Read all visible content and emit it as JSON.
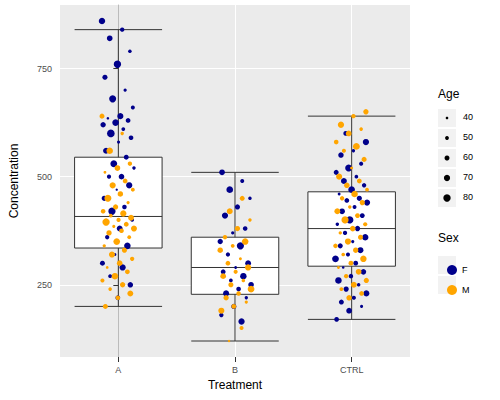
{
  "chart_data": {
    "type": "boxplot",
    "x_label": "Treatment",
    "y_label": "Concentration",
    "categories": [
      "A",
      "B",
      "CTRL"
    ],
    "ylim": [
      83,
      897
    ],
    "yticks": [
      250,
      500,
      750
    ],
    "grid": true,
    "boxes": [
      {
        "category": "A",
        "whisker_low": 200,
        "q1": 335,
        "median": 408,
        "q3": 545,
        "whisker_high": 840
      },
      {
        "category": "B",
        "whisker_low": 120,
        "q1": 228,
        "median": 290,
        "q3": 360,
        "whisker_high": 510
      },
      {
        "category": "CTRL",
        "whisker_low": 170,
        "q1": 293,
        "median": 380,
        "q3": 465,
        "whisker_high": 640
      }
    ],
    "size_legend": {
      "title": "Age",
      "values": [
        40,
        50,
        60,
        70,
        80
      ]
    },
    "color_legend_title": "Sex",
    "series": [
      {
        "name": "F",
        "color": "#00008B",
        "points": [
          [
            "A",
            860,
            72
          ],
          [
            "A",
            840,
            55
          ],
          [
            "A",
            820,
            66
          ],
          [
            "A",
            790,
            48
          ],
          [
            "A",
            760,
            80
          ],
          [
            "A",
            730,
            61
          ],
          [
            "A",
            700,
            45
          ],
          [
            "A",
            680,
            77
          ],
          [
            "A",
            660,
            52
          ],
          [
            "A",
            640,
            69
          ],
          [
            "A",
            635,
            40
          ],
          [
            "A",
            630,
            58
          ],
          [
            "A",
            625,
            74
          ],
          [
            "A",
            620,
            63
          ],
          [
            "A",
            610,
            50
          ],
          [
            "A",
            600,
            82
          ],
          [
            "A",
            590,
            57
          ],
          [
            "A",
            580,
            44
          ],
          [
            "A",
            560,
            68
          ],
          [
            "A",
            545,
            59
          ],
          [
            "A",
            530,
            75
          ],
          [
            "A",
            520,
            47
          ],
          [
            "A",
            500,
            65
          ],
          [
            "A",
            500,
            53
          ],
          [
            "A",
            480,
            71
          ],
          [
            "A",
            470,
            38
          ],
          [
            "A",
            450,
            62
          ],
          [
            "A",
            430,
            56
          ],
          [
            "A",
            420,
            79
          ],
          [
            "A",
            400,
            49
          ],
          [
            "A",
            380,
            67
          ],
          [
            "A",
            360,
            54
          ],
          [
            "A",
            340,
            73
          ],
          [
            "A",
            320,
            43
          ],
          [
            "A",
            300,
            60
          ],
          [
            "A",
            290,
            70
          ],
          [
            "A",
            270,
            51
          ],
          [
            "A",
            250,
            64
          ],
          [
            "A",
            220,
            58
          ],
          [
            "B",
            510,
            66
          ],
          [
            "B",
            490,
            52
          ],
          [
            "B",
            470,
            74
          ],
          [
            "B",
            450,
            48
          ],
          [
            "B",
            430,
            61
          ],
          [
            "B",
            410,
            70
          ],
          [
            "B",
            380,
            56
          ],
          [
            "B",
            370,
            45
          ],
          [
            "B",
            350,
            63
          ],
          [
            "B",
            340,
            78
          ],
          [
            "B",
            320,
            54
          ],
          [
            "B",
            300,
            67
          ],
          [
            "B",
            290,
            42
          ],
          [
            "B",
            280,
            59
          ],
          [
            "B",
            270,
            72
          ],
          [
            "B",
            260,
            50
          ],
          [
            "B",
            250,
            65
          ],
          [
            "B",
            240,
            57
          ],
          [
            "B",
            230,
            69
          ],
          [
            "B",
            220,
            46
          ],
          [
            "B",
            200,
            62
          ],
          [
            "B",
            180,
            55
          ],
          [
            "B",
            165,
            71
          ],
          [
            "CTRL",
            600,
            58
          ],
          [
            "CTRL",
            580,
            71
          ],
          [
            "CTRL",
            560,
            46
          ],
          [
            "CTRL",
            550,
            64
          ],
          [
            "CTRL",
            530,
            53
          ],
          [
            "CTRL",
            520,
            77
          ],
          [
            "CTRL",
            510,
            60
          ],
          [
            "CTRL",
            500,
            49
          ],
          [
            "CTRL",
            490,
            68
          ],
          [
            "CTRL",
            480,
            55
          ],
          [
            "CTRL",
            470,
            74
          ],
          [
            "CTRL",
            460,
            42
          ],
          [
            "CTRL",
            450,
            62
          ],
          [
            "CTRL",
            445,
            57
          ],
          [
            "CTRL",
            440,
            70
          ],
          [
            "CTRL",
            430,
            51
          ],
          [
            "CTRL",
            420,
            66
          ],
          [
            "CTRL",
            410,
            59
          ],
          [
            "CTRL",
            400,
            79
          ],
          [
            "CTRL",
            390,
            47
          ],
          [
            "CTRL",
            380,
            63
          ],
          [
            "CTRL",
            370,
            54
          ],
          [
            "CTRL",
            360,
            72
          ],
          [
            "CTRL",
            350,
            45
          ],
          [
            "CTRL",
            340,
            61
          ],
          [
            "CTRL",
            330,
            68
          ],
          [
            "CTRL",
            320,
            52
          ],
          [
            "CTRL",
            310,
            75
          ],
          [
            "CTRL",
            300,
            58
          ],
          [
            "CTRL",
            290,
            40
          ],
          [
            "CTRL",
            280,
            65
          ],
          [
            "CTRL",
            270,
            56
          ],
          [
            "CTRL",
            260,
            73
          ],
          [
            "CTRL",
            250,
            48
          ],
          [
            "CTRL",
            240,
            62
          ],
          [
            "CTRL",
            230,
            69
          ],
          [
            "CTRL",
            220,
            53
          ],
          [
            "CTRL",
            210,
            60
          ],
          [
            "CTRL",
            200,
            44
          ],
          [
            "CTRL",
            190,
            66
          ],
          [
            "CTRL",
            170,
            57
          ]
        ]
      },
      {
        "name": "M",
        "color": "#FFA500",
        "points": [
          [
            "A",
            640,
            60
          ],
          [
            "A",
            600,
            47
          ],
          [
            "A",
            560,
            73
          ],
          [
            "A",
            530,
            55
          ],
          [
            "A",
            520,
            66
          ],
          [
            "A",
            510,
            42
          ],
          [
            "A",
            490,
            58
          ],
          [
            "A",
            480,
            70
          ],
          [
            "A",
            470,
            51
          ],
          [
            "A",
            460,
            64
          ],
          [
            "A",
            450,
            77
          ],
          [
            "A",
            440,
            45
          ],
          [
            "A",
            430,
            62
          ],
          [
            "A",
            420,
            56
          ],
          [
            "A",
            415,
            71
          ],
          [
            "A",
            410,
            49
          ],
          [
            "A",
            405,
            67
          ],
          [
            "A",
            400,
            53
          ],
          [
            "A",
            395,
            80
          ],
          [
            "A",
            390,
            59
          ],
          [
            "A",
            385,
            44
          ],
          [
            "A",
            380,
            68
          ],
          [
            "A",
            375,
            57
          ],
          [
            "A",
            370,
            63
          ],
          [
            "A",
            360,
            50
          ],
          [
            "A",
            350,
            74
          ],
          [
            "A",
            340,
            46
          ],
          [
            "A",
            330,
            61
          ],
          [
            "A",
            320,
            69
          ],
          [
            "A",
            310,
            54
          ],
          [
            "A",
            300,
            65
          ],
          [
            "A",
            290,
            41
          ],
          [
            "A",
            280,
            58
          ],
          [
            "A",
            270,
            72
          ],
          [
            "A",
            260,
            52
          ],
          [
            "A",
            250,
            63
          ],
          [
            "A",
            240,
            48
          ],
          [
            "A",
            230,
            67
          ],
          [
            "A",
            220,
            56
          ],
          [
            "A",
            200,
            60
          ],
          [
            "B",
            450,
            59
          ],
          [
            "B",
            420,
            68
          ],
          [
            "B",
            400,
            47
          ],
          [
            "B",
            380,
            62
          ],
          [
            "B",
            360,
            55
          ],
          [
            "B",
            350,
            73
          ],
          [
            "B",
            340,
            50
          ],
          [
            "B",
            330,
            64
          ],
          [
            "B",
            310,
            43
          ],
          [
            "B",
            300,
            57
          ],
          [
            "B",
            290,
            70
          ],
          [
            "B",
            280,
            53
          ],
          [
            "B",
            270,
            66
          ],
          [
            "B",
            260,
            48
          ],
          [
            "B",
            250,
            61
          ],
          [
            "B",
            240,
            75
          ],
          [
            "B",
            230,
            56
          ],
          [
            "B",
            220,
            63
          ],
          [
            "B",
            210,
            45
          ],
          [
            "B",
            200,
            58
          ],
          [
            "B",
            190,
            69
          ],
          [
            "B",
            150,
            52
          ],
          [
            "B",
            120,
            38
          ],
          [
            "CTRL",
            650,
            63
          ],
          [
            "CTRL",
            640,
            54
          ],
          [
            "CTRL",
            620,
            71
          ],
          [
            "CTRL",
            610,
            48
          ],
          [
            "CTRL",
            600,
            66
          ],
          [
            "CTRL",
            580,
            57
          ],
          [
            "CTRL",
            570,
            75
          ],
          [
            "CTRL",
            560,
            52
          ],
          [
            "CTRL",
            540,
            61
          ],
          [
            "CTRL",
            520,
            44
          ],
          [
            "CTRL",
            500,
            69
          ],
          [
            "CTRL",
            490,
            58
          ],
          [
            "CTRL",
            480,
            64
          ],
          [
            "CTRL",
            470,
            50
          ],
          [
            "CTRL",
            460,
            73
          ],
          [
            "CTRL",
            450,
            55
          ],
          [
            "CTRL",
            440,
            62
          ],
          [
            "CTRL",
            430,
            47
          ],
          [
            "CTRL",
            420,
            67
          ],
          [
            "CTRL",
            410,
            59
          ],
          [
            "CTRL",
            400,
            78
          ],
          [
            "CTRL",
            390,
            53
          ],
          [
            "CTRL",
            380,
            65
          ],
          [
            "CTRL",
            370,
            46
          ],
          [
            "CTRL",
            360,
            60
          ],
          [
            "CTRL",
            350,
            70
          ],
          [
            "CTRL",
            340,
            56
          ],
          [
            "CTRL",
            330,
            63
          ],
          [
            "CTRL",
            320,
            49
          ],
          [
            "CTRL",
            310,
            72
          ],
          [
            "CTRL",
            300,
            58
          ],
          [
            "CTRL",
            290,
            42
          ],
          [
            "CTRL",
            280,
            66
          ],
          [
            "CTRL",
            270,
            54
          ],
          [
            "CTRL",
            260,
            61
          ],
          [
            "CTRL",
            250,
            68
          ],
          [
            "CTRL",
            240,
            51
          ],
          [
            "CTRL",
            230,
            57
          ],
          [
            "CTRL",
            220,
            64
          ]
        ]
      }
    ]
  }
}
